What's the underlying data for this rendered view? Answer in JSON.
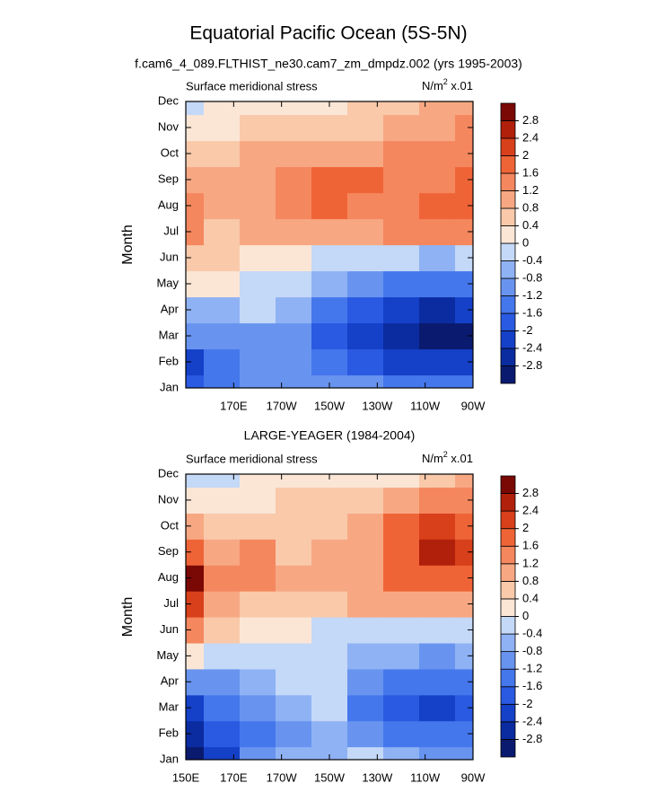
{
  "title": "Equatorial Pacific Ocean (5S-5N)",
  "subtitle": "f.cam6_4_089.FLTHIST_ne30.cam7_zm_dmpdz.002 (yrs 1995-2003)",
  "chart_data": [
    {
      "type": "contour",
      "left_label": "Surface meridional stress",
      "units": {
        "base": "N/m",
        "sup": "2",
        "suffix": " x.01"
      },
      "ylabel": "Month",
      "categories": [
        "Jan",
        "Feb",
        "Mar",
        "Apr",
        "May",
        "Jun",
        "Jul",
        "Aug",
        "Sep",
        "Oct",
        "Nov",
        "Dec"
      ],
      "x": [
        150,
        165,
        180,
        195,
        210,
        225,
        240,
        255,
        270
      ],
      "xlim": [
        150,
        270
      ],
      "xticks": [
        {
          "value": 170,
          "label": "170E"
        },
        {
          "value": 190,
          "label": "170W"
        },
        {
          "value": 210,
          "label": "150W"
        },
        {
          "value": 230,
          "label": "130W"
        },
        {
          "value": 250,
          "label": "110W"
        },
        {
          "value": 270,
          "label": "90W"
        }
      ],
      "values": [
        [
          -2,
          -1.6,
          -1.2,
          -1.2,
          -1.2,
          -1.2,
          -1.6,
          -1.6,
          -1.6
        ],
        [
          -2.2,
          -1.6,
          -1.2,
          -1.2,
          -1.6,
          -2,
          -2.4,
          -2.4,
          -2.4
        ],
        [
          -1.2,
          -1,
          -1,
          -1,
          -1.8,
          -2.2,
          -2.6,
          -3,
          -3
        ],
        [
          -0.6,
          -0.6,
          -0.4,
          -0.6,
          -1.4,
          -2,
          -2.4,
          -2.6,
          -2.4
        ],
        [
          0.2,
          0.1,
          -0.2,
          -0.4,
          -0.6,
          -1,
          -1.4,
          -1.6,
          -1.4
        ],
        [
          0.6,
          0.4,
          0.2,
          0.1,
          -0.1,
          -0.2,
          -0.4,
          -0.6,
          -0.4
        ],
        [
          1.2,
          0.6,
          0.8,
          0.8,
          0.8,
          1,
          1.2,
          1.2,
          1.2
        ],
        [
          1.4,
          0.8,
          1,
          1.2,
          1.6,
          1.4,
          1.4,
          1.6,
          1.6
        ],
        [
          0.8,
          0.8,
          1,
          1.2,
          1.6,
          1.6,
          1.4,
          1.4,
          1.6
        ],
        [
          0.6,
          0.6,
          0.8,
          0.9,
          1,
          1,
          1.2,
          1.4,
          1.4
        ],
        [
          0.2,
          0.3,
          0.4,
          0.6,
          0.6,
          0.6,
          0.8,
          1,
          1.2
        ],
        [
          -0.2,
          0.1,
          0.2,
          0.2,
          0.3,
          0.4,
          0.6,
          0.8,
          0.8
        ]
      ],
      "levels": [
        -2.8,
        -2.4,
        -2,
        -1.6,
        -1.2,
        -0.8,
        -0.4,
        0,
        0.4,
        0.8,
        1.2,
        1.6,
        2,
        2.4,
        2.8
      ],
      "colors": [
        "#0a1a6e",
        "#0b2ca0",
        "#1540c8",
        "#2a5ae2",
        "#4577ec",
        "#6894f0",
        "#8fb2f4",
        "#c4d8f7",
        "#fbe6d6",
        "#f9c9aa",
        "#f7a883",
        "#f5875e",
        "#ef6437",
        "#d8401b",
        "#b0200b",
        "#7a0804"
      ]
    },
    {
      "type": "contour",
      "title": "LARGE-YEAGER (1984-2004)",
      "left_label": "Surface meridional stress",
      "units": {
        "base": "N/m",
        "sup": "2",
        "suffix": " x.01"
      },
      "ylabel": "Month",
      "categories": [
        "Jan",
        "Feb",
        "Mar",
        "Apr",
        "May",
        "Jun",
        "Jul",
        "Aug",
        "Sep",
        "Oct",
        "Nov",
        "Dec"
      ],
      "x": [
        150,
        165,
        180,
        195,
        210,
        225,
        240,
        255,
        270
      ],
      "xlim": [
        150,
        270
      ],
      "xticks": [
        {
          "value": 150,
          "label": "150E"
        },
        {
          "value": 170,
          "label": "170E"
        },
        {
          "value": 190,
          "label": "170W"
        },
        {
          "value": 210,
          "label": "150W"
        },
        {
          "value": 230,
          "label": "130W"
        },
        {
          "value": 250,
          "label": "110W"
        },
        {
          "value": 270,
          "label": "90W"
        }
      ],
      "values": [
        [
          -3,
          -2.4,
          -1,
          -0.6,
          -0.8,
          -0.4,
          -0.8,
          -1,
          -1.2
        ],
        [
          -2.8,
          -2,
          -1.4,
          -1,
          -0.6,
          -1,
          -1.6,
          -1.6,
          -1.6
        ],
        [
          -2.2,
          -1.6,
          -1.2,
          -0.6,
          -0.4,
          -1.6,
          -2,
          -2.2,
          -2
        ],
        [
          -1.2,
          -1.2,
          -0.8,
          -0.4,
          -0.4,
          -1.2,
          -1.6,
          -1.6,
          -1.4
        ],
        [
          0.2,
          -0.2,
          -0.2,
          -0.2,
          -0.4,
          -0.6,
          -0.8,
          -1,
          -0.8
        ],
        [
          1.2,
          0.4,
          0.2,
          0,
          -0.2,
          -0.2,
          -0.2,
          -0.4,
          -0.2
        ],
        [
          2.2,
          1,
          0.6,
          0.4,
          0.6,
          0.8,
          1,
          1,
          0.8
        ],
        [
          2.8,
          1.2,
          1.2,
          0.8,
          1,
          1,
          1.6,
          1.8,
          1.6
        ],
        [
          1.8,
          1,
          1.2,
          0.6,
          1,
          1,
          1.6,
          2.4,
          2
        ],
        [
          0.8,
          0.6,
          0.6,
          0.4,
          0.4,
          0.8,
          1.6,
          2,
          1.8
        ],
        [
          0.2,
          0,
          0.2,
          0.4,
          0.4,
          0.4,
          0.8,
          1.2,
          1.2
        ],
        [
          -0.4,
          -0.2,
          0,
          0.1,
          0.2,
          0.1,
          0.2,
          0.6,
          0.8
        ]
      ],
      "levels": [
        -2.8,
        -2.4,
        -2,
        -1.6,
        -1.2,
        -0.8,
        -0.4,
        0,
        0.4,
        0.8,
        1.2,
        1.6,
        2,
        2.4,
        2.8
      ],
      "colors": [
        "#0a1a6e",
        "#0b2ca0",
        "#1540c8",
        "#2a5ae2",
        "#4577ec",
        "#6894f0",
        "#8fb2f4",
        "#c4d8f7",
        "#fbe6d6",
        "#f9c9aa",
        "#f7a883",
        "#f5875e",
        "#ef6437",
        "#d8401b",
        "#b0200b",
        "#7a0804"
      ]
    }
  ]
}
